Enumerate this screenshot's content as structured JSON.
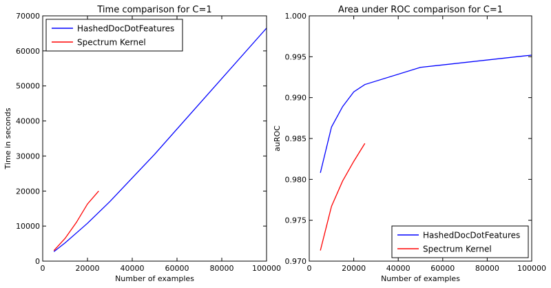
{
  "chart_data": [
    {
      "type": "line",
      "title": "Time comparison for C=1",
      "xlabel": "Number of examples",
      "ylabel": "Time in seconds",
      "xlim": [
        0,
        100000
      ],
      "ylim": [
        0,
        70000
      ],
      "xticks": [
        0,
        20000,
        40000,
        60000,
        80000,
        100000
      ],
      "yticks": [
        0,
        10000,
        20000,
        30000,
        40000,
        50000,
        60000,
        70000
      ],
      "legend": "top-left",
      "grid": false,
      "series": [
        {
          "name": "HashedDocDotFeatures",
          "color": "#0000ff",
          "x": [
            5000,
            10000,
            15000,
            20000,
            25000,
            30000,
            50000,
            100000
          ],
          "y": [
            2700,
            5200,
            8000,
            10800,
            13900,
            17000,
            30500,
            66500
          ]
        },
        {
          "name": "Spectrum Kernel",
          "color": "#ff0000",
          "x": [
            5000,
            10000,
            15000,
            20000,
            25000
          ],
          "y": [
            3000,
            6500,
            11000,
            16300,
            20000
          ]
        }
      ]
    },
    {
      "type": "line",
      "title": "Area under ROC comparison for C=1",
      "xlabel": "Number of examples",
      "ylabel": "auROC",
      "xlim": [
        0,
        100000
      ],
      "ylim": [
        0.97,
        1.0
      ],
      "xticks": [
        0,
        20000,
        40000,
        60000,
        80000,
        100000
      ],
      "yticks": [
        0.97,
        0.975,
        0.98,
        0.985,
        0.99,
        0.995,
        1.0
      ],
      "ytick_labels": [
        "0.970",
        "0.975",
        "0.980",
        "0.985",
        "0.990",
        "0.995",
        "1.000"
      ],
      "legend": "bottom-right",
      "grid": false,
      "series": [
        {
          "name": "HashedDocDotFeatures",
          "color": "#0000ff",
          "x": [
            5000,
            10000,
            15000,
            20000,
            25000,
            50000,
            100000
          ],
          "y": [
            0.9808,
            0.9864,
            0.9889,
            0.9907,
            0.9916,
            0.9937,
            0.9952
          ]
        },
        {
          "name": "Spectrum Kernel",
          "color": "#ff0000",
          "x": [
            5000,
            10000,
            15000,
            20000,
            25000
          ],
          "y": [
            0.9713,
            0.9767,
            0.9798,
            0.9822,
            0.9844
          ]
        }
      ]
    }
  ]
}
